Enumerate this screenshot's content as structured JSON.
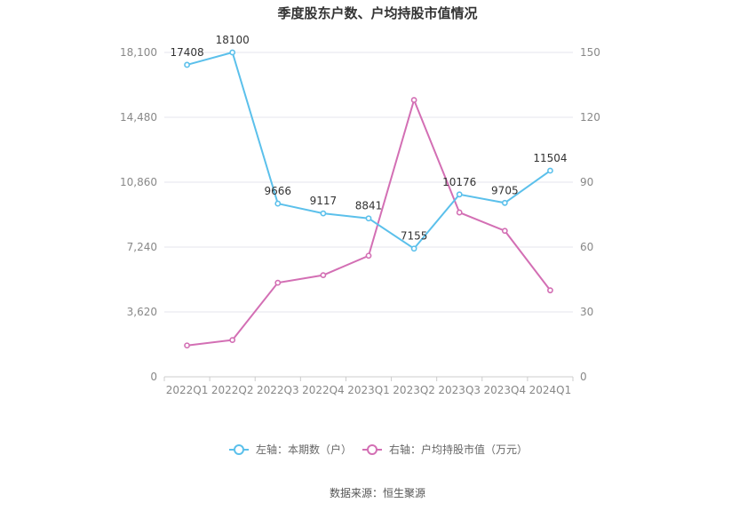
{
  "chart_data": {
    "type": "line",
    "title": "季度股东户数、户均持股市值情况",
    "categories": [
      "2022Q1",
      "2022Q2",
      "2022Q3",
      "2022Q4",
      "2023Q1",
      "2023Q2",
      "2023Q3",
      "2023Q4",
      "2024Q1"
    ],
    "left_axis": {
      "ticks": [
        "0",
        "3,620",
        "7,240",
        "10,860",
        "14,480",
        "18,100"
      ],
      "ylim": [
        0,
        18100
      ]
    },
    "right_axis": {
      "ticks": [
        "0",
        "30",
        "60",
        "90",
        "120",
        "150"
      ],
      "ylim": [
        0,
        150
      ]
    },
    "series": [
      {
        "name": "左轴：本期数（户）",
        "axis": "left",
        "color": "#5bc0eb",
        "values": [
          17408,
          18100,
          9666,
          9117,
          8841,
          7155,
          10176,
          9705,
          11504
        ],
        "labels": [
          "17408",
          "18100",
          "9666",
          "9117",
          "8841",
          "7155",
          "10176",
          "9705",
          "11504"
        ]
      },
      {
        "name": "右轴：户均持股市值（万元）",
        "axis": "right",
        "color": "#d36fb4",
        "values": [
          14.5,
          17,
          43.5,
          47,
          56,
          128,
          76,
          67.5,
          40
        ]
      }
    ],
    "grid": true,
    "legend_position": "bottom"
  },
  "source": "数据来源：恒生聚源"
}
